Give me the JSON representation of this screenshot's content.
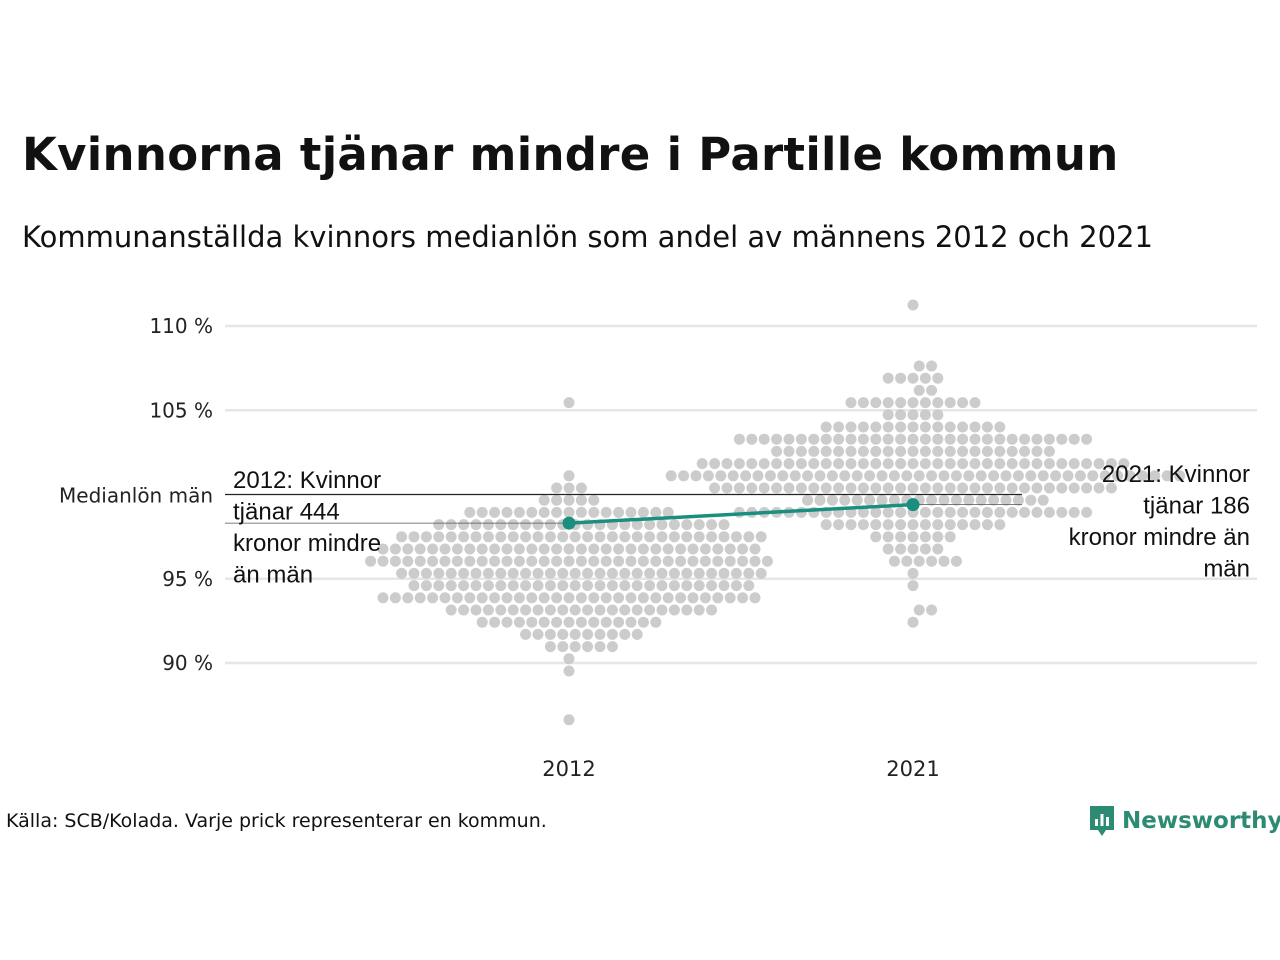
{
  "title": "Kvinnorna tjänar mindre i Partille kommun",
  "subtitle": "Kommunanställda kvinnors medianlön som andel av männens 2012 och 2021",
  "source": "Källa: SCB/Kolada. Varje prick representerar en kommun.",
  "brand": {
    "name": "Newsworthy",
    "color": "#2e8b73"
  },
  "colors": {
    "dots": "#cccccc",
    "highlight": "#1a8f7f",
    "grid": "#e6e6e6",
    "reference": "#222222"
  },
  "chart_data": {
    "type": "scatter",
    "categories": [
      "2012",
      "2021"
    ],
    "ylim": [
      86,
      111.5
    ],
    "y_ticks": [
      {
        "value": 90,
        "label": "90 %"
      },
      {
        "value": 95,
        "label": "95 %"
      },
      {
        "value": 105,
        "label": "105 %"
      },
      {
        "value": 110,
        "label": "110 %"
      }
    ],
    "reference_line": {
      "value": 100,
      "label": "Medianlön män"
    },
    "grid": true,
    "distribution": {
      "2012": {
        "center": 95.5,
        "spread": 2.3,
        "min": 86.6,
        "max": 105.2,
        "count": 290
      },
      "2021": {
        "center": 101.3,
        "spread": 2.4,
        "min": 92.5,
        "max": 111.3,
        "count": 290
      }
    },
    "highlight": {
      "name": "Partille",
      "values": [
        98.3,
        99.4
      ]
    },
    "annotations": [
      {
        "category": "2012",
        "text": "2012: Kvinnor tjänar 444 kronor mindre än män"
      },
      {
        "category": "2021",
        "text": "2021: Kvinnor tjänar 186 kronor mindre än män"
      }
    ]
  }
}
